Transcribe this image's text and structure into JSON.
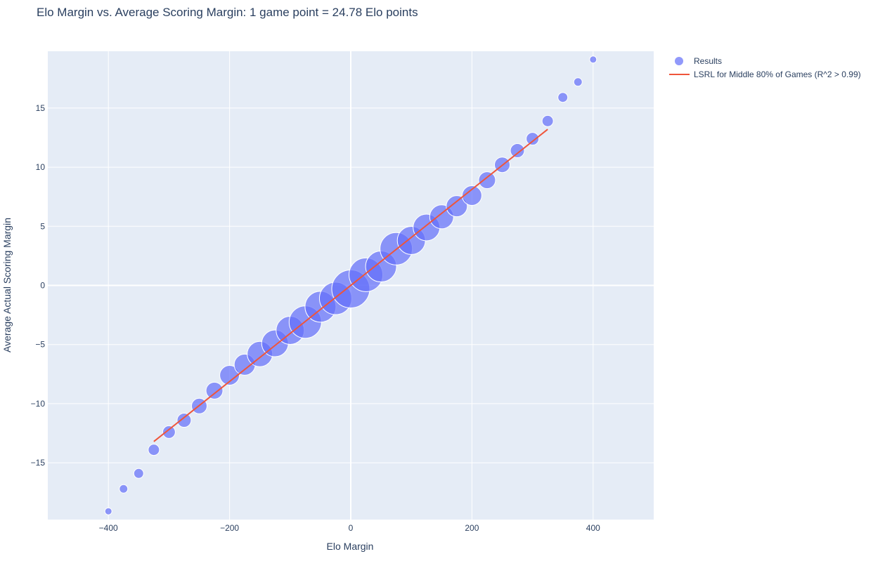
{
  "chart_data": {
    "type": "scatter",
    "title": "Elo Margin vs. Average Scoring Margin: 1 game point = 24.78 Elo points",
    "xlabel": "Elo Margin",
    "ylabel": "Average Actual Scoring Margin",
    "xlim": [
      -500,
      500
    ],
    "ylim": [
      -19.8,
      19.8
    ],
    "x_ticks": [
      -400,
      -200,
      0,
      200,
      400
    ],
    "x_tick_labels": [
      "−400",
      "−200",
      "0",
      "200",
      "400"
    ],
    "y_ticks": [
      -15,
      -10,
      -5,
      0,
      5,
      10,
      15
    ],
    "y_tick_labels": [
      "−15",
      "−10",
      "−5",
      "0",
      "5",
      "10",
      "15"
    ],
    "grid": true,
    "legend_position": "top-right, outside plot",
    "colors": {
      "plot_background": "#e5ecf6",
      "grid": "#ffffff",
      "points": "#636efa",
      "line": "#ef553b",
      "text": "#2a3f5f"
    },
    "series": [
      {
        "name": "Results",
        "type": "scatter",
        "x": [
          -400,
          -375,
          -350,
          -325,
          -300,
          -275,
          -250,
          -225,
          -200,
          -175,
          -150,
          -125,
          -100,
          -75,
          -50,
          -25,
          0,
          25,
          50,
          75,
          100,
          125,
          150,
          175,
          200,
          225,
          250,
          275,
          300,
          325,
          350,
          375,
          400
        ],
        "y": [
          -19.1,
          -17.2,
          -15.9,
          -13.9,
          -12.4,
          -11.4,
          -10.2,
          -8.9,
          -7.6,
          -6.7,
          -5.8,
          -4.9,
          -3.8,
          -3.1,
          -1.8,
          -1.1,
          -0.3,
          0.9,
          1.6,
          3.1,
          3.8,
          4.9,
          5.8,
          6.7,
          7.6,
          8.9,
          10.2,
          11.4,
          12.4,
          13.9,
          15.9,
          17.2,
          19.1
        ],
        "marker_size_relative": [
          5,
          6,
          7,
          8,
          9,
          10,
          11,
          12,
          14,
          15,
          18,
          19,
          20,
          23,
          22,
          23,
          27,
          24,
          22,
          23,
          20,
          19,
          17,
          15,
          14,
          12,
          11,
          10,
          9,
          8,
          7,
          6,
          5
        ]
      },
      {
        "name": "LSRL for Middle 80% of Games (R^2 > 0.99)",
        "type": "line",
        "x": [
          -325,
          325
        ],
        "y": [
          -13.2,
          13.2
        ]
      }
    ]
  }
}
